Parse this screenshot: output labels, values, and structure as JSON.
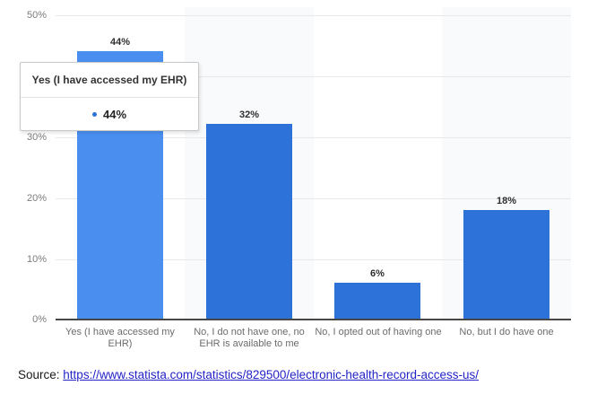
{
  "chart_data": {
    "type": "bar",
    "title": "",
    "xlabel": "",
    "ylabel": "",
    "categories": [
      "Yes (I have accessed my EHR)",
      "No, I do not have one, no EHR is available to me",
      "No, I opted out of having one",
      "No, but I do have one"
    ],
    "values": [
      44,
      32,
      6,
      18
    ],
    "value_labels": [
      "44%",
      "32%",
      "6%",
      "18%"
    ],
    "ylim": [
      0,
      50
    ],
    "yticks": [
      "50%",
      "40%",
      "30%",
      "20%",
      "10%",
      "0%"
    ],
    "grid": true,
    "legend": "none",
    "hovered_index": 0
  },
  "colors": {
    "bar": "#2d72d8",
    "bar_hover": "#4a8ff0",
    "grid": "#e8e8e8",
    "band": "#f9fafb",
    "axis": "#474747",
    "link": "#2323c8"
  },
  "tooltip": {
    "title": "Yes (I have accessed my EHR)",
    "value": "44%"
  },
  "source": {
    "prefix": "Source:",
    "url": "https://www.statista.com/statistics/829500/electronic-health-record-access-us/"
  }
}
